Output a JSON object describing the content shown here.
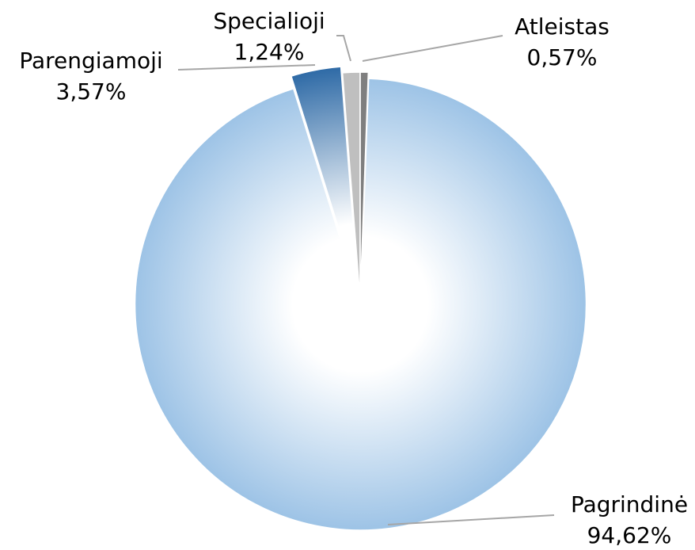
{
  "chart_data": {
    "type": "pie",
    "categories": [
      "Atleistas",
      "Pagrindinė",
      "Parengiamoji",
      "Specialioji"
    ],
    "values": [
      0.57,
      94.62,
      3.57,
      1.24
    ],
    "value_labels": [
      "0,57%",
      "94,62%",
      "3,57%",
      "1,24%"
    ],
    "colors": [
      "#7f7f7f",
      "#9dc3e6",
      "#2e6aa6",
      "#bfbfbf"
    ]
  }
}
